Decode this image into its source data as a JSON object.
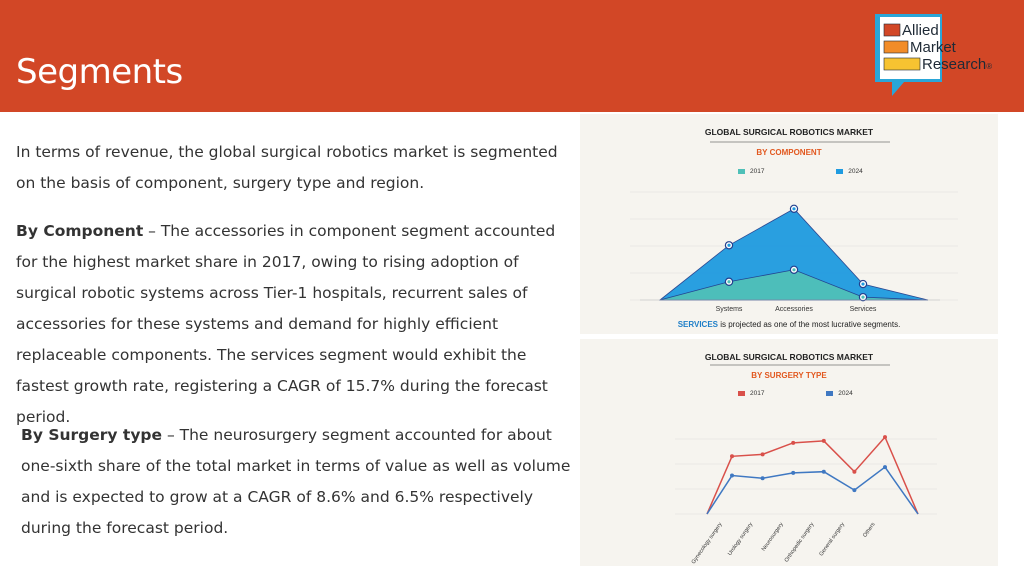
{
  "slide": {
    "title": "Segments",
    "intro": "In terms of revenue, the global surgical robotics market is segmented on the basis of component, surgery type and region.",
    "component_heading": "By Component",
    "component_text": " – The accessories in component segment accounted for the highest market share in 2017, owing to rising adoption of surgical robotic systems across Tier-1 hospitals, recurrent sales of accessories for these systems and demand for highly efficient replaceable components. The services segment would exhibit the fastest growth rate, registering a CAGR of 15.7% during the forecast period.",
    "surgery_heading": "By Surgery type",
    "surgery_text": " – The neurosurgery segment accounted for about one-sixth share of the total market in terms of value as well as volume and is expected to grow at a CAGR of 8.6% and 6.5% respectively during the forecast period."
  },
  "logo": {
    "line1": "Allied",
    "line2": "Market",
    "line3": "Research",
    "mark": "®",
    "colors": [
      "#d24726",
      "#f28c28",
      "#f7c331",
      "#2aa6d8"
    ]
  },
  "chart_data": [
    {
      "type": "area",
      "title": "GLOBAL SURGICAL ROBOTICS MARKET",
      "subtitle": "BY COMPONENT",
      "categories": [
        "Systems",
        "Accessories",
        "Services"
      ],
      "series": [
        {
          "name": "2017",
          "values": [
            0.32,
            0.53,
            0.05
          ],
          "color": "#4fc0b8"
        },
        {
          "name": "2024",
          "values": [
            0.96,
            1.6,
            0.28
          ],
          "color": "#1f9be0"
        }
      ],
      "ylim": [
        0,
        2.0
      ],
      "grid": true,
      "legend": "top",
      "footnote_highlight": "SERVICES",
      "footnote": " is projected as one of the most lucrative segments."
    },
    {
      "type": "line",
      "title": "GLOBAL SURGICAL ROBOTICS MARKET",
      "subtitle": "BY SURGERY TYPE",
      "categories": [
        "Gynecology surgery",
        "Urology surgery",
        "Neurosurgery",
        "Orthopedic surgery",
        "General surgery",
        "Others"
      ],
      "series": [
        {
          "name": "2017",
          "values": [
            1.5,
            1.55,
            1.85,
            1.9,
            1.1,
            2.0
          ],
          "color": "#d9504a"
        },
        {
          "name": "2024",
          "values": [
            1.0,
            0.93,
            1.07,
            1.1,
            0.62,
            1.22
          ],
          "color": "#3f78c2"
        }
      ],
      "ylim": [
        0,
        2.6
      ],
      "grid": true,
      "legend": "top"
    }
  ]
}
